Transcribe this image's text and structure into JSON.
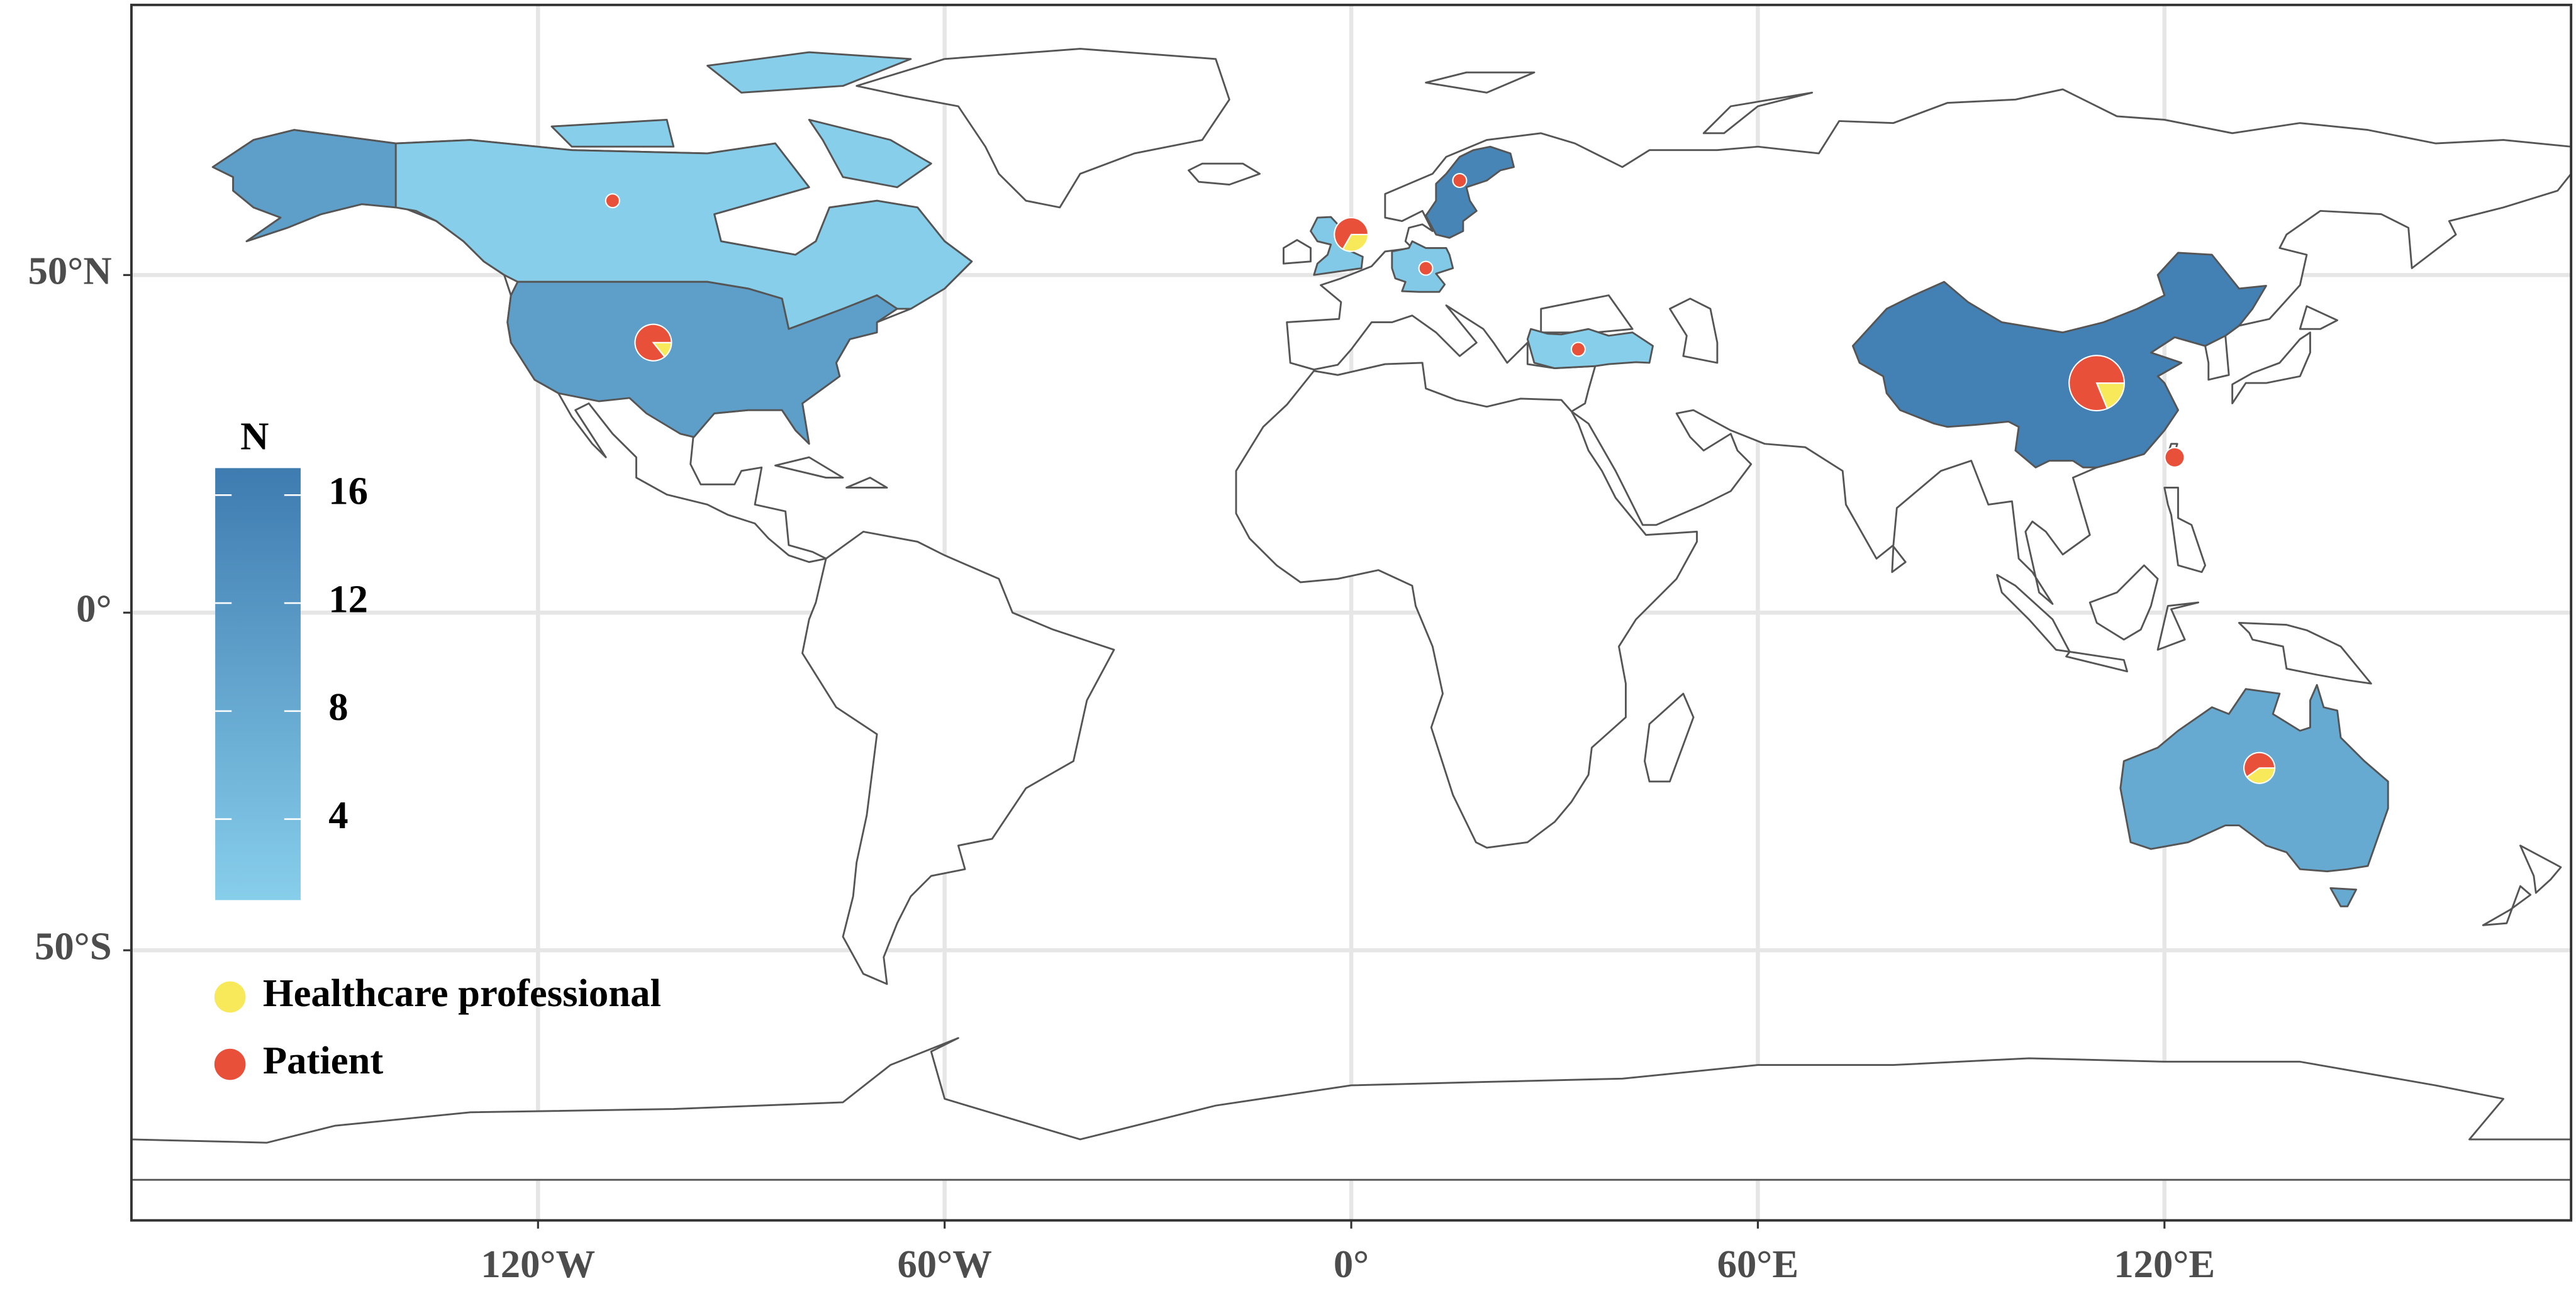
{
  "chart_data": {
    "type": "map",
    "xlim": [
      -180,
      180
    ],
    "ylim": [
      -90,
      90
    ],
    "xticks": [
      {
        "value": -120,
        "label": "120°W"
      },
      {
        "value": -60,
        "label": "60°W"
      },
      {
        "value": 0,
        "label": "0°"
      },
      {
        "value": 60,
        "label": "60°E"
      },
      {
        "value": 120,
        "label": "120°E"
      }
    ],
    "yticks": [
      {
        "value": -50,
        "label": "50°S"
      },
      {
        "value": 0,
        "label": "0°"
      },
      {
        "value": 50,
        "label": "50°N"
      }
    ],
    "grid": true,
    "fill_legend": {
      "title": "N",
      "lim": [
        1,
        17
      ],
      "ticks": [
        4,
        8,
        12,
        16
      ],
      "colors": [
        "#87ceeb",
        "#3e7bb0"
      ]
    },
    "regions": [
      {
        "n": 16
      },
      {
        "n": 15
      },
      {
        "n": 10
      },
      {
        "n": 8
      },
      {
        "n": 1
      },
      {
        "n": 2
      },
      {
        "n": 2
      },
      {
        "n": 1
      }
    ],
    "series": [
      {
        "name": "Healthcare professional",
        "color": "#f7e95a"
      },
      {
        "name": "Patient",
        "color": "#e8503a"
      }
    ],
    "pies": [
      {
        "lon": 110,
        "lat": 34,
        "values": [
          3,
          13
        ]
      },
      {
        "lon": -103,
        "lat": 40,
        "values": [
          1,
          6
        ]
      },
      {
        "lon": 0,
        "lat": 56,
        "values": [
          2,
          4
        ]
      },
      {
        "lon": 134,
        "lat": -23,
        "values": [
          2,
          3
        ]
      },
      {
        "lon": 121.5,
        "lat": 23,
        "values": [
          0,
          2
        ]
      },
      {
        "lon": -109,
        "lat": 61,
        "values": [
          0,
          1
        ]
      },
      {
        "lon": 11,
        "lat": 51,
        "values": [
          0,
          1
        ]
      },
      {
        "lon": 16,
        "lat": 64,
        "values": [
          0,
          1
        ]
      },
      {
        "lon": 33.5,
        "lat": 39,
        "values": [
          0,
          1
        ]
      }
    ]
  }
}
